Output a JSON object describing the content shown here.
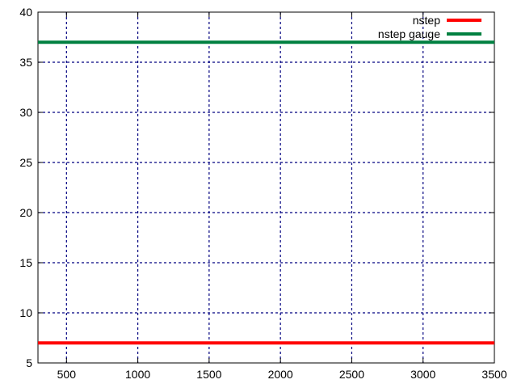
{
  "chart_data": {
    "type": "line",
    "title": "",
    "xlabel": "",
    "ylabel": "",
    "xlim": [
      300,
      3500
    ],
    "ylim": [
      5,
      40
    ],
    "x_ticks": [
      500,
      1000,
      1500,
      2000,
      2500,
      3000,
      3500
    ],
    "y_ticks": [
      5,
      10,
      15,
      20,
      25,
      30,
      35,
      40
    ],
    "grid": true,
    "legend_position": "top-right",
    "series": [
      {
        "name": "nstep",
        "color": "#ff0000",
        "x": [
          300,
          3500
        ],
        "y": [
          7,
          7
        ]
      },
      {
        "name": "nstep gauge",
        "color": "#008040",
        "x": [
          300,
          3500
        ],
        "y": [
          37,
          37
        ]
      }
    ]
  }
}
